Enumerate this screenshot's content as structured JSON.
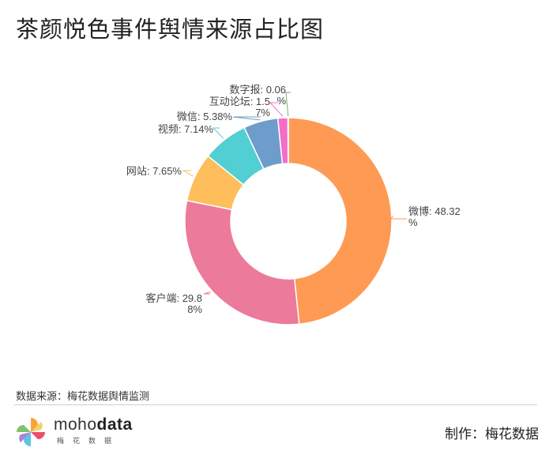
{
  "chart_data": {
    "type": "pie",
    "style": "donut",
    "title": "茶颜悦色事件舆情来源占比图",
    "series": [
      {
        "name": "微博",
        "value": 48.32,
        "label_lines": [
          "微博: 48.32",
          "%"
        ],
        "color": "#FE9A53"
      },
      {
        "name": "客户端",
        "value": 29.88,
        "label_lines": [
          "客户端: 29.8",
          "8%"
        ],
        "color": "#EC7A9B"
      },
      {
        "name": "网站",
        "value": 7.65,
        "label_lines": [
          "网站: 7.65%"
        ],
        "color": "#FDBE5B"
      },
      {
        "name": "视频",
        "value": 7.14,
        "label_lines": [
          "视频: 7.14%"
        ],
        "color": "#51CFD2"
      },
      {
        "name": "微信",
        "value": 5.38,
        "label_lines": [
          "微信: 5.38%"
        ],
        "color": "#6E9CCB"
      },
      {
        "name": "互动论坛",
        "value": 1.57,
        "label_lines": [
          "互动论坛: 1.5",
          "7%"
        ],
        "color": "#F46DC8"
      },
      {
        "name": "数字报",
        "value": 0.06,
        "label_lines": [
          "数字报: 0.06",
          "%"
        ],
        "color": "#7FB069"
      }
    ]
  },
  "footer": {
    "source": "数据来源：梅花数据舆情监测",
    "brand_prefix": "moho",
    "brand_suffix": "data",
    "brand_sub": "梅花数据",
    "maker": "制作：梅花数据"
  }
}
